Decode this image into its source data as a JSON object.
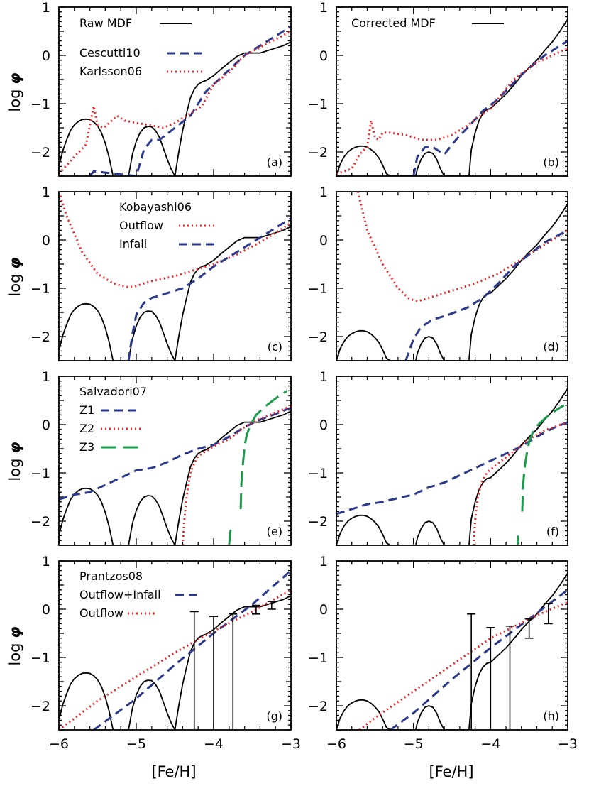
{
  "figure": {
    "ylabel_prefix": "log ",
    "ylabel_symbol": "φ",
    "xlabel": "[Fe/H]"
  },
  "colors": {
    "observed": "#000000",
    "navy": "#2b3a8c",
    "red": "#e8262b",
    "green": "#1a9a4a"
  },
  "chart_data": [
    {
      "type": "line",
      "panel": "(a)",
      "xlim": [
        -6,
        -3
      ],
      "ylim": [
        -2.5,
        1
      ],
      "xticks": [
        -6,
        -5,
        -4,
        -3
      ],
      "yticks": [
        -2,
        -1,
        0,
        1
      ],
      "xtick_labels_shown": false,
      "legend": [
        {
          "label": "Raw MDF",
          "style": "solid",
          "color": "#000000"
        },
        {
          "label": "Cescutti10",
          "style": "dashed",
          "color": "#2b3a8c"
        },
        {
          "label": "Karlsson06",
          "style": "dotted",
          "color": "#e8262b"
        }
      ],
      "observed": "raw",
      "series": [
        {
          "name": "Cescutti10",
          "style": "dashed",
          "color": "#2b3a8c",
          "x": [
            -5.6,
            -5.55,
            -5.0,
            -4.9,
            -4.8,
            -4.7,
            -4.5,
            -4.3,
            -4.1,
            -3.9,
            -3.6,
            -3.3,
            -3.0
          ],
          "y": [
            -2.5,
            -2.4,
            -2.5,
            -1.95,
            -1.75,
            -1.75,
            -1.5,
            -1.25,
            -0.75,
            -0.45,
            0.0,
            0.3,
            0.6
          ]
        },
        {
          "name": "Karlsson06",
          "style": "dotted",
          "color": "#e8262b",
          "x": [
            -6.0,
            -5.8,
            -5.65,
            -5.55,
            -5.5,
            -5.42,
            -5.35,
            -5.25,
            -5.15,
            -5.0,
            -4.8,
            -4.65,
            -4.5,
            -4.3,
            -4.15,
            -4.0,
            -3.8,
            -3.6,
            -3.3,
            -3.0
          ],
          "y": [
            -2.45,
            -2.1,
            -1.85,
            -1.05,
            -1.45,
            -1.5,
            -1.4,
            -1.25,
            -1.35,
            -1.4,
            -1.45,
            -1.5,
            -1.4,
            -1.2,
            -1.05,
            -0.6,
            -0.35,
            0.0,
            0.25,
            0.5
          ]
        }
      ]
    },
    {
      "type": "line",
      "panel": "(b)",
      "xlim": [
        -6,
        -3
      ],
      "ylim": [
        -2.5,
        1
      ],
      "xticks": [
        -6,
        -5,
        -4,
        -3
      ],
      "yticks": [
        -2,
        -1,
        0,
        1
      ],
      "xtick_labels_shown": false,
      "legend": [
        {
          "label": "Corrected MDF",
          "style": "solid",
          "color": "#000000"
        }
      ],
      "observed": "corrected",
      "series": [
        {
          "name": "Cescutti10",
          "style": "dashed",
          "color": "#2b3a8c",
          "x": [
            -5.0,
            -4.95,
            -4.85,
            -4.75,
            -4.6,
            -4.45,
            -4.3,
            -4.1,
            -3.9,
            -3.6,
            -3.3,
            -3.0
          ],
          "y": [
            -2.5,
            -2.1,
            -1.9,
            -1.9,
            -2.05,
            -1.75,
            -1.5,
            -1.15,
            -0.9,
            -0.4,
            0.0,
            0.3
          ]
        },
        {
          "name": "Karlsson06",
          "style": "dotted",
          "color": "#e8262b",
          "x": [
            -6.0,
            -5.8,
            -5.7,
            -5.6,
            -5.55,
            -5.5,
            -5.45,
            -5.4,
            -5.3,
            -5.1,
            -4.9,
            -4.7,
            -4.5,
            -4.3,
            -4.0,
            -3.7,
            -3.4,
            -3.0
          ],
          "y": [
            -2.45,
            -2.35,
            -2.05,
            -1.9,
            -1.35,
            -1.7,
            -1.75,
            -1.6,
            -1.6,
            -1.65,
            -1.75,
            -1.75,
            -1.65,
            -1.45,
            -1.1,
            -0.5,
            -0.15,
            0.15
          ]
        }
      ]
    },
    {
      "type": "line",
      "panel": "(c)",
      "xlim": [
        -6,
        -3
      ],
      "ylim": [
        -2.5,
        1
      ],
      "xticks": [
        -6,
        -5,
        -4,
        -3
      ],
      "yticks": [
        -2,
        -1,
        0,
        1
      ],
      "xtick_labels_shown": false,
      "legend_heading": "Kobayashi06",
      "legend": [
        {
          "label": "Outflow",
          "style": "dotted",
          "color": "#e8262b"
        },
        {
          "label": "Infall",
          "style": "dashed",
          "color": "#2b3a8c"
        }
      ],
      "observed": "raw",
      "series": [
        {
          "name": "Outflow",
          "style": "dotted",
          "color": "#e8262b",
          "x": [
            -6.0,
            -5.9,
            -5.7,
            -5.5,
            -5.3,
            -5.1,
            -5.0,
            -4.8,
            -4.5,
            -4.2,
            -4.0,
            -3.7,
            -3.4,
            -3.0
          ],
          "y": [
            1.0,
            0.5,
            -0.25,
            -0.7,
            -0.9,
            -0.98,
            -0.95,
            -0.85,
            -0.75,
            -0.6,
            -0.5,
            -0.3,
            -0.05,
            0.35
          ]
        },
        {
          "name": "Infall",
          "style": "dashed",
          "color": "#2b3a8c",
          "x": [
            -5.1,
            -5.05,
            -5.0,
            -4.9,
            -4.8,
            -4.6,
            -4.4,
            -4.2,
            -4.0,
            -3.8,
            -3.5,
            -3.3,
            -3.0
          ],
          "y": [
            -2.5,
            -1.95,
            -1.55,
            -1.3,
            -1.2,
            -1.1,
            -1.0,
            -0.8,
            -0.55,
            -0.35,
            -0.05,
            0.15,
            0.45
          ]
        }
      ]
    },
    {
      "type": "line",
      "panel": "(d)",
      "xlim": [
        -6,
        -3
      ],
      "ylim": [
        -2.5,
        1
      ],
      "xticks": [
        -6,
        -5,
        -4,
        -3
      ],
      "yticks": [
        -2,
        -1,
        0,
        1
      ],
      "xtick_labels_shown": false,
      "legend": [],
      "observed": "corrected",
      "series": [
        {
          "name": "Outflow",
          "style": "dotted",
          "color": "#e8262b",
          "x": [
            -5.72,
            -5.6,
            -5.4,
            -5.2,
            -5.05,
            -4.95,
            -4.8,
            -4.5,
            -4.2,
            -3.9,
            -3.6,
            -3.3,
            -3.0
          ],
          "y": [
            1.0,
            0.2,
            -0.5,
            -1.0,
            -1.22,
            -1.27,
            -1.2,
            -1.05,
            -0.9,
            -0.7,
            -0.4,
            -0.1,
            0.2
          ]
        },
        {
          "name": "Infall",
          "style": "dashed",
          "color": "#2b3a8c",
          "x": [
            -5.1,
            -5.0,
            -4.9,
            -4.75,
            -4.55,
            -4.3,
            -4.1,
            -3.9,
            -3.7,
            -3.5,
            -3.3,
            -3.0
          ],
          "y": [
            -2.5,
            -2.05,
            -1.8,
            -1.65,
            -1.55,
            -1.4,
            -1.2,
            -0.9,
            -0.55,
            -0.3,
            -0.05,
            0.2
          ]
        }
      ]
    },
    {
      "type": "line",
      "panel": "(e)",
      "xlim": [
        -6,
        -3
      ],
      "ylim": [
        -2.5,
        1
      ],
      "xticks": [
        -6,
        -5,
        -4,
        -3
      ],
      "yticks": [
        -2,
        -1,
        0,
        1
      ],
      "xtick_labels_shown": false,
      "legend_heading": "Salvadori07",
      "legend": [
        {
          "label": "Z1",
          "style": "dashed",
          "color": "#2b3a8c"
        },
        {
          "label": "Z2",
          "style": "dotted",
          "color": "#e8262b"
        },
        {
          "label": "Z3",
          "style": "longdash",
          "color": "#1a9a4a"
        }
      ],
      "observed": "raw",
      "series": [
        {
          "name": "Z1",
          "style": "dashed",
          "color": "#2b3a8c",
          "x": [
            -6.0,
            -5.8,
            -5.6,
            -5.4,
            -5.2,
            -5.0,
            -4.8,
            -4.6,
            -4.4,
            -4.2,
            -4.0,
            -3.8,
            -3.6,
            -3.4,
            -3.2,
            -3.0
          ],
          "y": [
            -1.55,
            -1.45,
            -1.4,
            -1.25,
            -1.1,
            -0.95,
            -0.9,
            -0.78,
            -0.62,
            -0.5,
            -0.42,
            -0.25,
            -0.05,
            0.1,
            0.22,
            0.35
          ]
        },
        {
          "name": "Z2",
          "style": "dotted",
          "color": "#e8262b",
          "x": [
            -4.4,
            -4.38,
            -4.35,
            -4.3,
            -4.25,
            -4.2,
            -4.1,
            -4.0,
            -3.8,
            -3.6,
            -3.4,
            -3.2,
            -3.0
          ],
          "y": [
            -2.5,
            -2.0,
            -1.5,
            -1.0,
            -0.8,
            -0.65,
            -0.55,
            -0.45,
            -0.3,
            -0.05,
            0.12,
            0.25,
            0.38
          ]
        },
        {
          "name": "Z3 (low branch)",
          "style": "longdash",
          "color": "#1a9a4a",
          "x": [
            -3.8,
            -3.79,
            -3.77
          ],
          "y": [
            -2.5,
            -2.3,
            -2.05
          ]
        },
        {
          "name": "Z3",
          "style": "longdash",
          "color": "#1a9a4a",
          "x": [
            -3.65,
            -3.64,
            -3.62,
            -3.6,
            -3.57,
            -3.52,
            -3.45,
            -3.35,
            -3.25,
            -3.15,
            -3.05
          ],
          "y": [
            -1.75,
            -1.2,
            -0.8,
            -0.45,
            -0.2,
            0.0,
            0.2,
            0.35,
            0.48,
            0.6,
            0.7
          ]
        }
      ]
    },
    {
      "type": "line",
      "panel": "(f)",
      "xlim": [
        -6,
        -3
      ],
      "ylim": [
        -2.5,
        1
      ],
      "xticks": [
        -6,
        -5,
        -4,
        -3
      ],
      "yticks": [
        -2,
        -1,
        0,
        1
      ],
      "xtick_labels_shown": false,
      "legend": [],
      "observed": "corrected",
      "series": [
        {
          "name": "Z1",
          "style": "dashed",
          "color": "#2b3a8c",
          "x": [
            -6.0,
            -5.8,
            -5.6,
            -5.4,
            -5.2,
            -5.0,
            -4.8,
            -4.6,
            -4.4,
            -4.2,
            -4.0,
            -3.8,
            -3.6,
            -3.4,
            -3.2,
            -3.0
          ],
          "y": [
            -1.85,
            -1.75,
            -1.65,
            -1.6,
            -1.52,
            -1.45,
            -1.3,
            -1.2,
            -1.05,
            -0.9,
            -0.75,
            -0.6,
            -0.45,
            -0.25,
            -0.08,
            0.05
          ]
        },
        {
          "name": "Z2",
          "style": "dotted",
          "color": "#e8262b",
          "x": [
            -4.22,
            -4.2,
            -4.17,
            -4.12,
            -4.05,
            -3.9,
            -3.7,
            -3.5,
            -3.3,
            -3.0
          ],
          "y": [
            -2.5,
            -2.0,
            -1.55,
            -1.2,
            -1.0,
            -0.8,
            -0.55,
            -0.3,
            -0.12,
            0.05
          ]
        },
        {
          "name": "Z3 (low branch)",
          "style": "longdash",
          "color": "#1a9a4a",
          "x": [
            -3.65,
            -3.64
          ],
          "y": [
            -2.5,
            -2.3
          ]
        },
        {
          "name": "Z3",
          "style": "longdash",
          "color": "#1a9a4a",
          "x": [
            -3.59,
            -3.58,
            -3.56,
            -3.53,
            -3.5,
            -3.45,
            -3.38,
            -3.3,
            -3.2,
            -3.1,
            -3.05
          ],
          "y": [
            -1.8,
            -1.3,
            -0.9,
            -0.6,
            -0.35,
            -0.15,
            0.0,
            0.12,
            0.25,
            0.35,
            0.4
          ]
        }
      ]
    },
    {
      "type": "line",
      "panel": "(g)",
      "xlim": [
        -6,
        -3
      ],
      "ylim": [
        -2.5,
        1
      ],
      "xticks": [
        -6,
        -5,
        -4,
        -3
      ],
      "yticks": [
        -2,
        -1,
        0,
        1
      ],
      "xtick_labels_shown": true,
      "legend_heading": "Prantzos08",
      "legend": [
        {
          "label": "Outflow+Infall",
          "style": "dashed",
          "color": "#2b3a8c"
        },
        {
          "label": "Outflow",
          "style": "dotted",
          "color": "#e8262b"
        }
      ],
      "observed": "raw",
      "series": [
        {
          "name": "Outflow+Infall",
          "style": "dashed",
          "color": "#2b3a8c",
          "x": [
            -5.55,
            -5.0,
            -4.5,
            -4.0,
            -3.5,
            -3.0
          ],
          "y": [
            -2.5,
            -1.85,
            -1.15,
            -0.5,
            0.1,
            0.8
          ]
        },
        {
          "name": "Outflow",
          "style": "dotted",
          "color": "#e8262b",
          "x": [
            -6.0,
            -5.5,
            -5.0,
            -4.5,
            -4.0,
            -3.5,
            -3.0
          ],
          "y": [
            -2.5,
            -1.9,
            -1.4,
            -0.9,
            -0.45,
            -0.05,
            0.4
          ]
        }
      ],
      "errorbars": [
        {
          "x": -4.25,
          "low": -2.5,
          "high": -0.05
        },
        {
          "x": -4.0,
          "low": -2.5,
          "high": -0.15
        },
        {
          "x": -3.75,
          "low": -2.5,
          "high": -0.1
        },
        {
          "x": -3.45,
          "low": -0.1,
          "high": 0.08
        },
        {
          "x": -3.25,
          "low": 0.0,
          "high": 0.16
        }
      ]
    },
    {
      "type": "line",
      "panel": "(h)",
      "xlim": [
        -6,
        -3
      ],
      "ylim": [
        -2.5,
        1
      ],
      "xticks": [
        -6,
        -5,
        -4,
        -3
      ],
      "yticks": [
        -2,
        -1,
        0,
        1
      ],
      "xtick_labels_shown": true,
      "legend": [],
      "observed": "corrected",
      "series": [
        {
          "name": "Outflow+Infall",
          "style": "dashed",
          "color": "#2b3a8c",
          "x": [
            -5.3,
            -5.0,
            -4.5,
            -4.0,
            -3.5,
            -3.0
          ],
          "y": [
            -2.5,
            -2.15,
            -1.45,
            -0.8,
            -0.2,
            0.4
          ]
        },
        {
          "name": "Outflow",
          "style": "dotted",
          "color": "#e8262b",
          "x": [
            -5.7,
            -5.5,
            -5.0,
            -4.5,
            -4.0,
            -3.5,
            -3.0
          ],
          "y": [
            -2.5,
            -2.25,
            -1.7,
            -1.15,
            -0.6,
            -0.2,
            0.15
          ]
        }
      ],
      "errorbars": [
        {
          "x": -4.25,
          "low": -2.5,
          "high": -0.1
        },
        {
          "x": -4.0,
          "low": -2.5,
          "high": -0.38
        },
        {
          "x": -3.75,
          "low": -2.5,
          "high": -0.35
        },
        {
          "x": -3.5,
          "low": -0.6,
          "high": -0.2
        },
        {
          "x": -3.25,
          "low": -0.3,
          "high": 0.12
        }
      ]
    }
  ],
  "observed_curves": {
    "raw": {
      "x": [
        -6.0,
        -5.95,
        -5.9,
        -5.85,
        -5.8,
        -5.75,
        -5.7,
        -5.65,
        -5.6,
        -5.55,
        -5.5,
        -5.45,
        -5.4,
        -5.35,
        -5.3,
        -5.25,
        -5.1,
        -5.05,
        -5.0,
        -4.95,
        -4.9,
        -4.85,
        -4.8,
        -4.75,
        -4.7,
        -4.65,
        -4.6,
        -4.55,
        -4.5,
        -4.45,
        -4.4,
        -4.35,
        -4.3,
        -4.25,
        -4.2,
        -4.15,
        -4.1,
        -4.0,
        -3.9,
        -3.8,
        -3.7,
        -3.6,
        -3.5,
        -3.4,
        -3.3,
        -3.2,
        -3.1,
        -3.0
      ],
      "y": [
        -2.3,
        -1.98,
        -1.75,
        -1.55,
        -1.44,
        -1.37,
        -1.33,
        -1.32,
        -1.33,
        -1.38,
        -1.46,
        -1.6,
        -1.82,
        -2.12,
        -2.5,
        null,
        -2.5,
        -2.05,
        -1.78,
        -1.6,
        -1.5,
        -1.47,
        -1.48,
        -1.56,
        -1.7,
        -1.92,
        -2.15,
        -2.35,
        -2.5,
        -2.0,
        -1.55,
        -1.2,
        -0.88,
        -0.7,
        -0.6,
        -0.55,
        -0.52,
        -0.42,
        -0.28,
        -0.15,
        -0.02,
        0.05,
        0.05,
        0.05,
        0.1,
        0.15,
        0.2,
        0.28
      ]
    },
    "corrected": {
      "x": [
        -6.0,
        -5.95,
        -5.9,
        -5.85,
        -5.8,
        -5.75,
        -5.7,
        -5.65,
        -5.6,
        -5.55,
        -5.5,
        -5.45,
        -5.4,
        -5.35,
        -5.3,
        -4.97,
        -4.95,
        -4.9,
        -4.85,
        -4.8,
        -4.75,
        -4.7,
        -4.65,
        -4.6,
        -4.28,
        -4.25,
        -4.2,
        -4.15,
        -4.1,
        -4.05,
        -4.0,
        -3.9,
        -3.8,
        -3.7,
        -3.6,
        -3.5,
        -3.4,
        -3.3,
        -3.2,
        -3.1,
        -3.0
      ],
      "y": [
        -2.5,
        -2.25,
        -2.1,
        -2.0,
        -1.94,
        -1.9,
        -1.88,
        -1.88,
        -1.9,
        -1.95,
        -2.02,
        -2.12,
        -2.27,
        -2.45,
        -2.5,
        -2.5,
        -2.35,
        -2.15,
        -2.03,
        -2.0,
        -2.03,
        -2.15,
        -2.35,
        -2.5,
        -2.5,
        -1.95,
        -1.6,
        -1.35,
        -1.2,
        -1.12,
        -1.1,
        -0.95,
        -0.8,
        -0.62,
        -0.42,
        -0.25,
        -0.1,
        0.1,
        0.28,
        0.5,
        0.75
      ]
    }
  }
}
